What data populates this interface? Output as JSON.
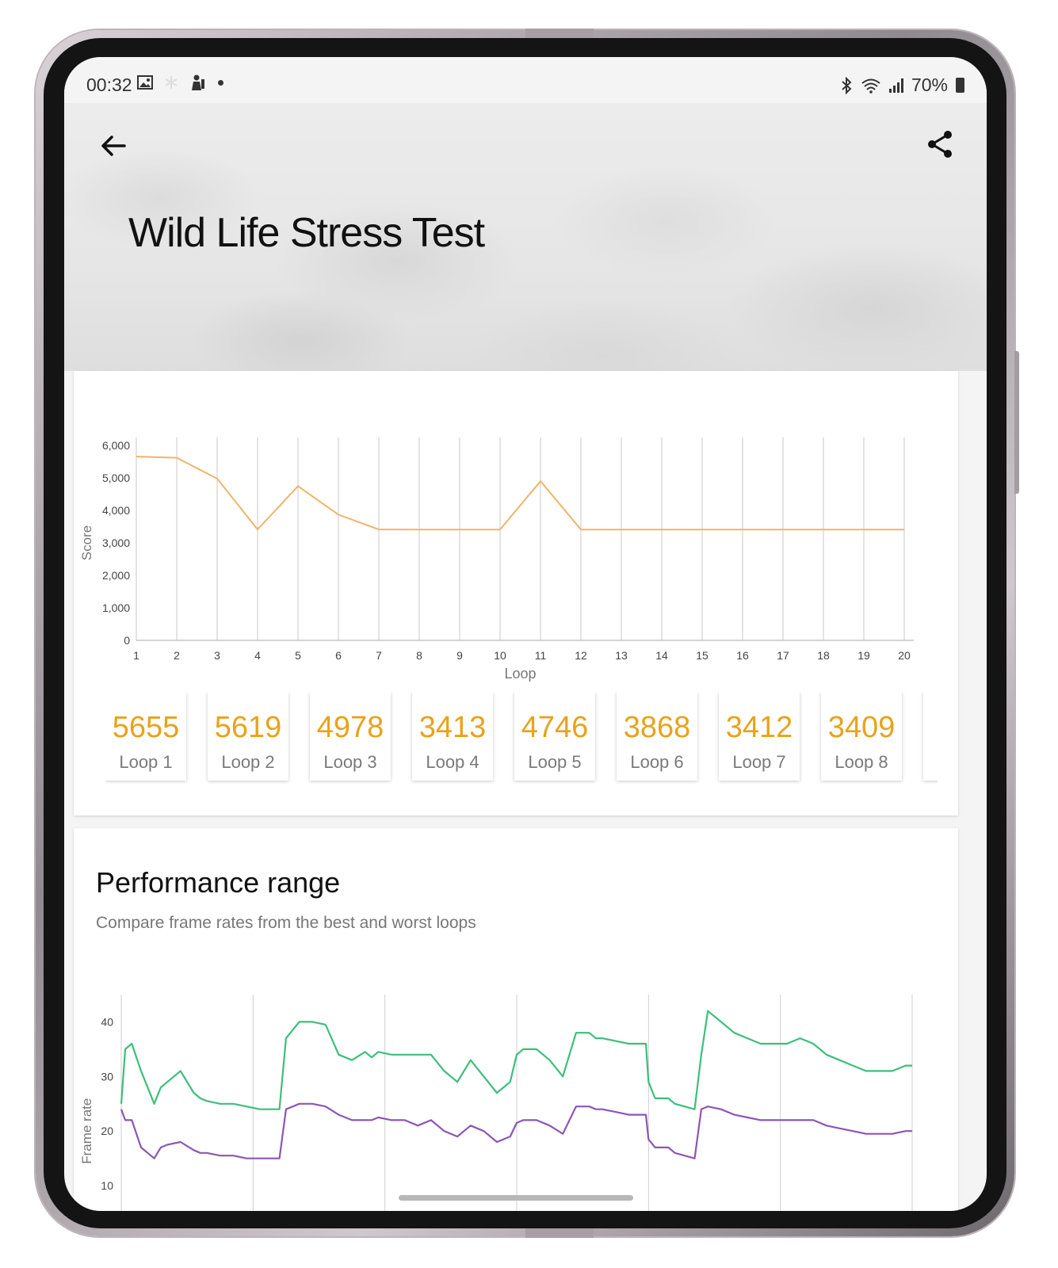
{
  "status_bar": {
    "time": "00:32",
    "battery": "70%",
    "icons": [
      "image-icon",
      "snowflake-icon",
      "person-icon",
      "dot-icon",
      "bluetooth-icon",
      "wifi-icon",
      "signal-icon",
      "battery-icon"
    ]
  },
  "header": {
    "title": "Wild Life Stress Test",
    "icons": [
      "back-arrow-icon",
      "share-icon"
    ]
  },
  "score_chart": {
    "chart_data": {
      "type": "line",
      "xlabel": "Loop",
      "ylabel": "Score",
      "x": [
        1,
        2,
        3,
        4,
        5,
        6,
        7,
        8,
        9,
        10,
        11,
        12,
        13,
        14,
        15,
        16,
        17,
        18,
        19,
        20
      ],
      "values": [
        5655,
        5619,
        4978,
        3413,
        4746,
        3868,
        3412,
        3409,
        3409,
        3410,
        4900,
        3410,
        3410,
        3410,
        3410,
        3410,
        3410,
        3410,
        3410,
        3410
      ],
      "ylim": [
        0,
        6000
      ],
      "yticks": [
        0,
        1000,
        2000,
        3000,
        4000,
        5000,
        6000
      ],
      "ytick_labels": [
        "0",
        "1,000",
        "2,000",
        "3,000",
        "4,000",
        "5,000",
        "6,000"
      ],
      "grid": "vertical",
      "color": "#f0b46a"
    }
  },
  "loops": [
    {
      "value": "5655",
      "label": "Loop 1"
    },
    {
      "value": "5619",
      "label": "Loop 2"
    },
    {
      "value": "4978",
      "label": "Loop 3"
    },
    {
      "value": "3413",
      "label": "Loop 4"
    },
    {
      "value": "4746",
      "label": "Loop 5"
    },
    {
      "value": "3868",
      "label": "Loop 6"
    },
    {
      "value": "3412",
      "label": "Loop 7"
    },
    {
      "value": "3409",
      "label": "Loop 8"
    }
  ],
  "performance_range": {
    "title": "Performance range",
    "subtitle": "Compare frame rates from the best and worst loops",
    "chart_data": {
      "type": "line",
      "ylabel": "Frame rate",
      "ylim": [
        0,
        45
      ],
      "yticks": [
        10,
        20,
        30,
        40
      ],
      "ytick_labels": [
        "10",
        "20",
        "30",
        "40"
      ],
      "grid": "vertical",
      "xlim": [
        0,
        60
      ],
      "series": [
        {
          "color": "#3cbf7a",
          "x": [
            0,
            0.3,
            0.8,
            1.5,
            2.5,
            3,
            3.5,
            4.5,
            5.5,
            6,
            6.5,
            7.5,
            8.5,
            9.5,
            10.5,
            11.5,
            12,
            12.5,
            13.5,
            14.5,
            15.5,
            16.5,
            17.5,
            18.5,
            19,
            19.5,
            20.5,
            21.5,
            22.5,
            23.5,
            24.5,
            25.5,
            26.5,
            27.5,
            28.5,
            29.5,
            30,
            30.5,
            31.5,
            32.5,
            33.5,
            34.5,
            35.5,
            36,
            36.5,
            37.5,
            38.5,
            39.5,
            39.8,
            40,
            40.5,
            41.5,
            42,
            43.5,
            44,
            44.5,
            45.5,
            46.5,
            47.5,
            48.5,
            49.5,
            50.5,
            51.5,
            52.5,
            53.5,
            54.5,
            55.5,
            56.5,
            57.5,
            58.5,
            59.5,
            60
          ],
          "values": [
            25,
            35,
            36,
            31,
            25,
            28,
            29,
            31,
            27,
            26,
            25.5,
            25,
            25,
            24.5,
            24,
            24,
            24,
            37,
            40,
            40,
            39.5,
            34,
            33,
            34.5,
            33.5,
            34.5,
            34,
            34,
            34,
            34,
            31,
            29,
            33,
            30,
            27,
            29,
            34,
            35,
            35,
            33,
            30,
            38,
            38,
            37,
            37,
            36.5,
            36,
            36,
            36,
            29,
            26,
            26,
            25,
            24,
            34,
            42,
            40,
            38,
            37,
            36,
            36,
            36,
            37,
            36,
            34,
            33,
            32,
            31,
            31,
            31,
            32,
            32
          ]
        },
        {
          "color": "#8e55b5",
          "x": [
            0,
            0.3,
            0.8,
            1.5,
            2.5,
            3,
            3.5,
            4.5,
            5.5,
            6,
            6.5,
            7.5,
            8.5,
            9.5,
            10.5,
            11.5,
            12,
            12.5,
            13.5,
            14.5,
            15.5,
            16.5,
            17.5,
            18.5,
            19,
            19.5,
            20.5,
            21.5,
            22.5,
            23.5,
            24.5,
            25.5,
            26.5,
            27.5,
            28.5,
            29.5,
            30,
            30.5,
            31.5,
            32.5,
            33.5,
            34.5,
            35.5,
            36,
            36.5,
            37.5,
            38.5,
            39.5,
            39.8,
            40,
            40.5,
            41.5,
            42,
            43.5,
            44,
            44.5,
            45.5,
            46.5,
            47.5,
            48.5,
            49.5,
            50.5,
            51.5,
            52.5,
            53.5,
            54.5,
            55.5,
            56.5,
            57.5,
            58.5,
            59.5,
            60
          ],
          "values": [
            24,
            22,
            22,
            17,
            15,
            17,
            17.5,
            18,
            16.5,
            16,
            16,
            15.5,
            15.5,
            15,
            15,
            15,
            15,
            24,
            25,
            25,
            24.5,
            23,
            22,
            22,
            22,
            22.5,
            22,
            22,
            21,
            22,
            20,
            19,
            21,
            20,
            18,
            19,
            21.5,
            22,
            22,
            21,
            19.5,
            24.5,
            24.5,
            24,
            24,
            23.5,
            23,
            23,
            23,
            18.5,
            17,
            17,
            16,
            15,
            24,
            24.5,
            24,
            23,
            22.5,
            22,
            22,
            22,
            22,
            22,
            21,
            20.5,
            20,
            19.5,
            19.5,
            19.5,
            20,
            20
          ]
        }
      ]
    }
  }
}
